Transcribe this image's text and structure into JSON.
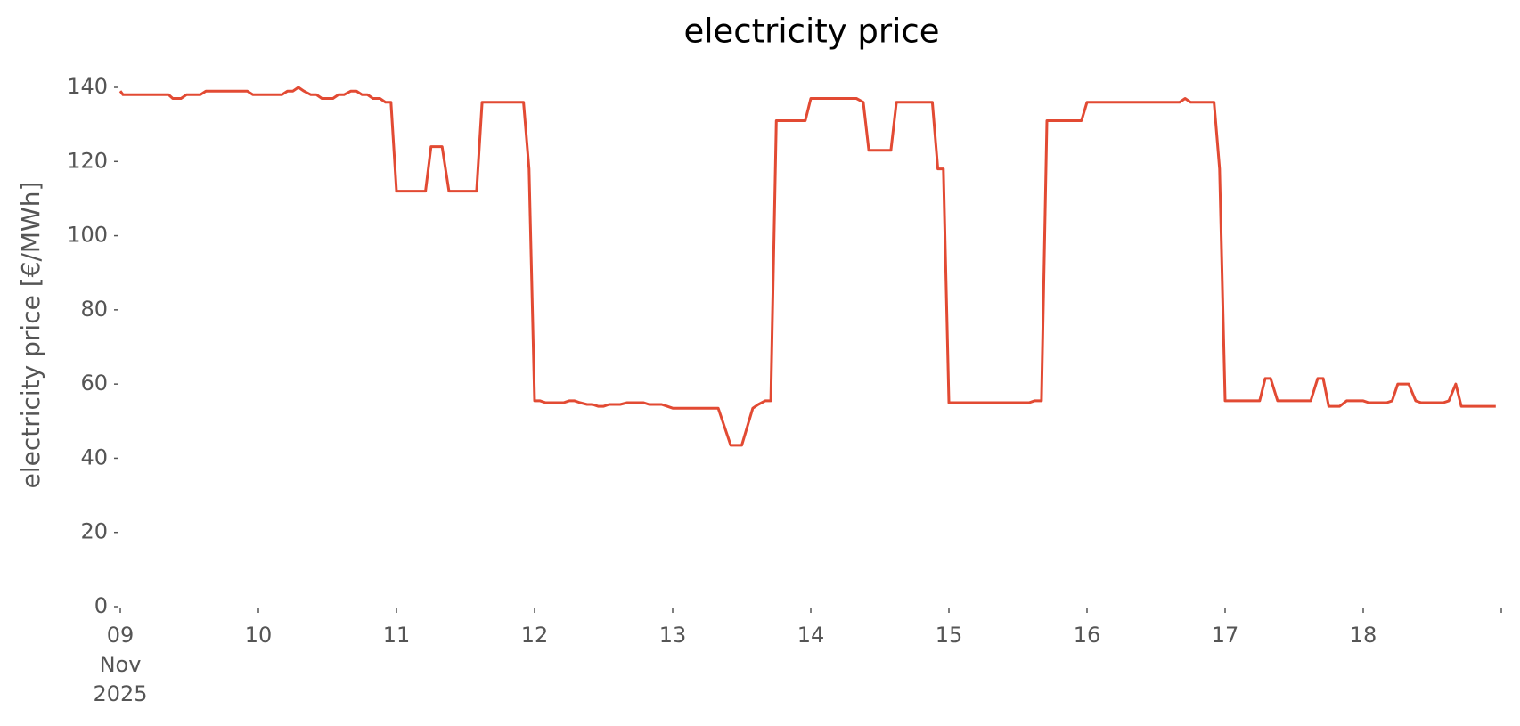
{
  "chart_data": {
    "type": "line",
    "title": "electricity price",
    "y_label": "electricity price [€/MWh]",
    "x": [
      9.0,
      9.02,
      9.35,
      9.38,
      9.44,
      9.48,
      9.58,
      9.62,
      9.92,
      9.96,
      10.17,
      10.21,
      10.25,
      10.29,
      10.33,
      10.38,
      10.42,
      10.46,
      10.54,
      10.58,
      10.62,
      10.67,
      10.71,
      10.75,
      10.79,
      10.83,
      10.88,
      10.92,
      10.96,
      11.0,
      11.21,
      11.25,
      11.33,
      11.38,
      11.58,
      11.62,
      11.92,
      11.96,
      12.0,
      12.04,
      12.08,
      12.21,
      12.25,
      12.29,
      12.33,
      12.38,
      12.42,
      12.46,
      12.5,
      12.54,
      12.62,
      12.67,
      12.79,
      12.83,
      12.92,
      12.96,
      13.0,
      13.33,
      13.42,
      13.5,
      13.58,
      13.62,
      13.67,
      13.71,
      13.75,
      13.96,
      14.0,
      14.33,
      14.38,
      14.42,
      14.58,
      14.62,
      14.88,
      14.92,
      14.96,
      15.0,
      15.58,
      15.62,
      15.67,
      15.71,
      15.96,
      16.0,
      16.67,
      16.71,
      16.75,
      16.92,
      16.96,
      17.0,
      17.25,
      17.29,
      17.33,
      17.38,
      17.62,
      17.67,
      17.71,
      17.75,
      17.83,
      17.88,
      18.0,
      18.04,
      18.17,
      18.21,
      18.25,
      18.33,
      18.38,
      18.42,
      18.58,
      18.62,
      18.67,
      18.71,
      18.96
    ],
    "series": [
      {
        "name": "electricity price",
        "color": "#e24a33",
        "values": [
          139,
          138,
          138,
          137,
          137,
          138,
          138,
          139,
          139,
          138,
          138,
          139,
          139,
          140,
          139,
          138,
          138,
          137,
          137,
          138,
          138,
          139,
          139,
          138,
          138,
          137,
          137,
          136,
          136,
          112,
          112,
          124,
          124,
          112,
          112,
          136,
          136,
          118,
          55.5,
          55.5,
          55,
          55,
          55.5,
          55.5,
          55,
          54.5,
          54.5,
          54,
          54,
          54.5,
          54.5,
          55,
          55,
          54.5,
          54.5,
          54,
          53.5,
          53.5,
          43.5,
          43.5,
          53.5,
          54.5,
          55.5,
          55.5,
          131,
          131,
          137,
          137,
          136,
          123,
          123,
          136,
          136,
          118,
          118,
          55,
          55,
          55.5,
          55.5,
          131,
          131,
          136,
          136,
          137,
          136,
          136,
          118,
          55.5,
          55.5,
          61.5,
          61.5,
          55.5,
          55.5,
          61.5,
          61.5,
          54,
          54,
          55.5,
          55.5,
          55,
          55,
          55.5,
          60,
          60,
          55.5,
          55,
          55,
          55.5,
          60,
          54,
          54
        ]
      }
    ],
    "xlim": [
      9,
      19
    ],
    "xticks": [
      {
        "value": 9,
        "label": "09\nNov\n2025"
      },
      {
        "value": 10,
        "label": "10"
      },
      {
        "value": 11,
        "label": "11"
      },
      {
        "value": 12,
        "label": "12"
      },
      {
        "value": 13,
        "label": "13"
      },
      {
        "value": 14,
        "label": "14"
      },
      {
        "value": 15,
        "label": "15"
      },
      {
        "value": 16,
        "label": "16"
      },
      {
        "value": 17,
        "label": "17"
      },
      {
        "value": 18,
        "label": "18"
      },
      {
        "value": 19,
        "label": null
      }
    ],
    "ylim": [
      0,
      140
    ],
    "yticks": [
      0,
      20,
      40,
      60,
      80,
      100,
      120,
      140
    ],
    "grid": false
  }
}
